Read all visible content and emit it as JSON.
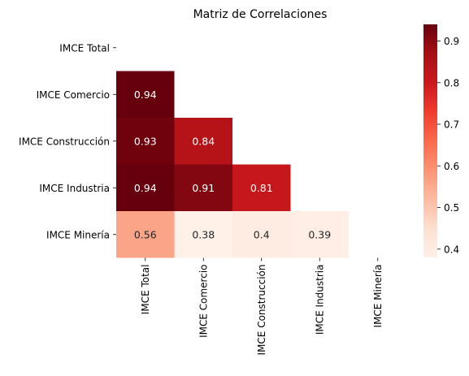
{
  "chart_data": {
    "type": "heatmap",
    "title": "Matriz de Correlaciones",
    "row_labels": [
      "IMCE Total",
      "IMCE Comercio",
      "IMCE Construcción",
      "IMCE Industria",
      "IMCE Minería"
    ],
    "col_labels": [
      "IMCE Total",
      "IMCE Comercio",
      "IMCE Construcción",
      "IMCE Industria",
      "IMCE Minería"
    ],
    "mask": "upper-triangle-including-diagonal",
    "cells": [
      {
        "row": 1,
        "col": 0,
        "value": 0.94,
        "label": "0.94"
      },
      {
        "row": 2,
        "col": 0,
        "value": 0.93,
        "label": "0.93"
      },
      {
        "row": 2,
        "col": 1,
        "value": 0.84,
        "label": "0.84"
      },
      {
        "row": 3,
        "col": 0,
        "value": 0.94,
        "label": "0.94"
      },
      {
        "row": 3,
        "col": 1,
        "value": 0.91,
        "label": "0.91"
      },
      {
        "row": 3,
        "col": 2,
        "value": 0.81,
        "label": "0.81"
      },
      {
        "row": 4,
        "col": 0,
        "value": 0.56,
        "label": "0.56"
      },
      {
        "row": 4,
        "col": 1,
        "value": 0.38,
        "label": "0.38"
      },
      {
        "row": 4,
        "col": 2,
        "value": 0.4,
        "label": "0.4"
      },
      {
        "row": 4,
        "col": 3,
        "value": 0.39,
        "label": "0.39"
      }
    ],
    "colorbar": {
      "colormap": "Reds",
      "vmin": 0.38,
      "vmax": 0.94,
      "ticks": [
        0.4,
        0.5,
        0.6,
        0.7,
        0.8,
        0.9
      ],
      "tick_labels": [
        "0.4",
        "0.5",
        "0.6",
        "0.7",
        "0.8",
        "0.9"
      ]
    },
    "grid": false
  }
}
